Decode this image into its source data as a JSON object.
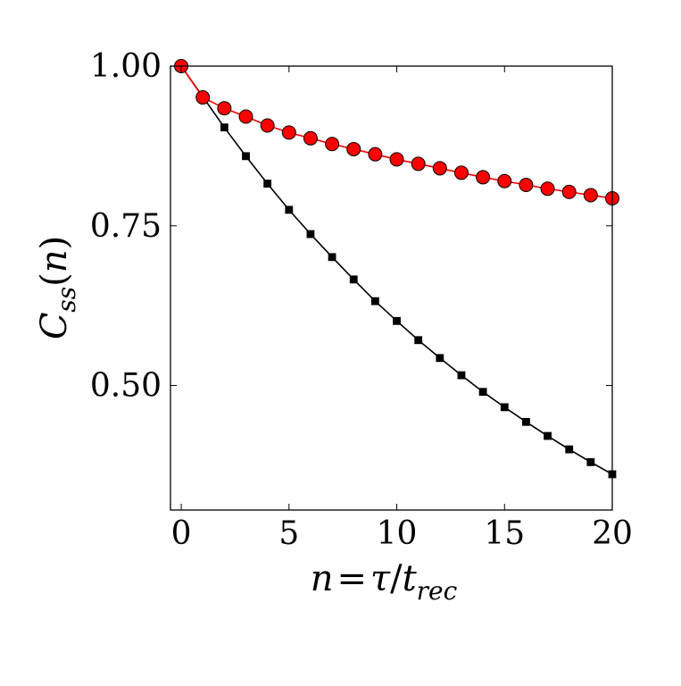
{
  "chart_data": {
    "type": "line",
    "title": "",
    "xlabel": "n = τ/t_rec",
    "ylabel": "C_ss(n)",
    "xlabel_parts": {
      "n": "n",
      "eq": "=",
      "tau": "τ",
      "slash": "/",
      "t": "t",
      "sub": "rec"
    },
    "ylabel_parts": {
      "C": "C",
      "sub": "ss",
      "arg": "(n)",
      "open": "(",
      "n": "n",
      "close": ")"
    },
    "xlim": [
      -0.5,
      20
    ],
    "ylim": [
      0.305,
      1.0
    ],
    "xticks": [
      0,
      5,
      10,
      15,
      20
    ],
    "xtick_labels": [
      "0",
      "5",
      "10",
      "15",
      "20"
    ],
    "yticks": [
      0.5,
      0.75,
      1.0
    ],
    "ytick_labels": [
      "0.50",
      "0.75",
      "1.00"
    ],
    "grid": false,
    "series": [
      {
        "marker": "circle",
        "color": "#ff0000",
        "edge_color": "#000000",
        "line_color": "#ff0000",
        "x": [
          0,
          1,
          2,
          3,
          4,
          5,
          6,
          7,
          8,
          9,
          10,
          11,
          12,
          13,
          14,
          15,
          16,
          17,
          18,
          19,
          20
        ],
        "y": [
          1.0,
          0.951,
          0.934,
          0.921,
          0.907,
          0.896,
          0.887,
          0.878,
          0.87,
          0.862,
          0.854,
          0.847,
          0.84,
          0.833,
          0.826,
          0.82,
          0.814,
          0.808,
          0.803,
          0.798,
          0.793
        ]
      },
      {
        "marker": "square",
        "color": "#000000",
        "edge_color": "#000000",
        "line_color": "#000000",
        "x": [
          0,
          1,
          2,
          3,
          4,
          5,
          6,
          7,
          8,
          9,
          10,
          11,
          12,
          13,
          14,
          15,
          16,
          17,
          18,
          19,
          20
        ],
        "y": [
          1.0,
          0.952,
          0.904,
          0.859,
          0.816,
          0.775,
          0.737,
          0.701,
          0.666,
          0.632,
          0.601,
          0.571,
          0.543,
          0.516,
          0.49,
          0.466,
          0.443,
          0.421,
          0.4,
          0.38,
          0.361
        ]
      }
    ]
  }
}
